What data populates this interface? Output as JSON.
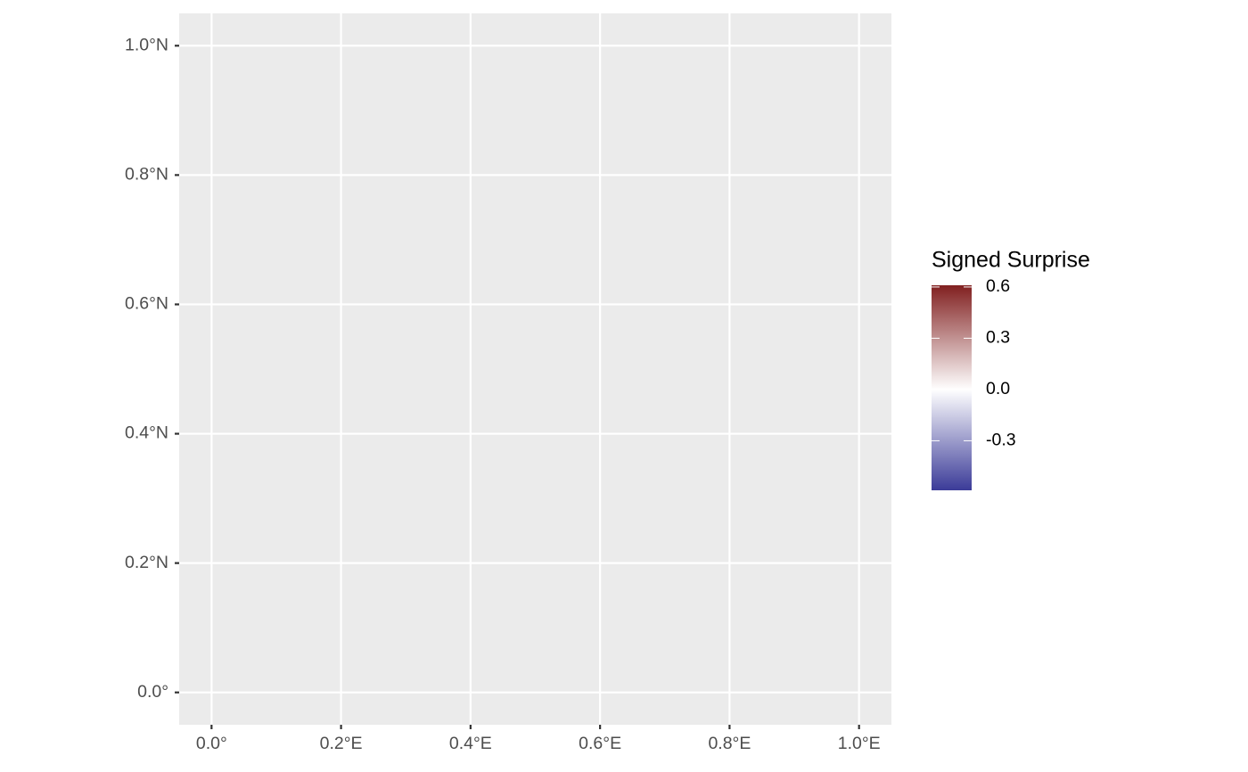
{
  "chart_data": {
    "type": "map",
    "xlim": [
      -0.05,
      1.05
    ],
    "ylim": [
      -0.05,
      1.05
    ],
    "xticks": [
      {
        "value": 0,
        "label": "0.0°"
      },
      {
        "value": 0.2,
        "label": "0.2°E"
      },
      {
        "value": 0.4,
        "label": "0.4°E"
      },
      {
        "value": 0.6,
        "label": "0.6°E"
      },
      {
        "value": 0.8,
        "label": "0.8°E"
      },
      {
        "value": 1,
        "label": "1.0°E"
      }
    ],
    "yticks": [
      {
        "value": 0,
        "label": "0.0°"
      },
      {
        "value": 0.2,
        "label": "0.2°N"
      },
      {
        "value": 0.4,
        "label": "0.4°N"
      },
      {
        "value": 0.6,
        "label": "0.6°N"
      },
      {
        "value": 0.8,
        "label": "0.8°N"
      },
      {
        "value": 1,
        "label": "1.0°N"
      }
    ],
    "grid": true,
    "legend": {
      "title": "Signed Surprise",
      "limits": [
        -0.59,
        0.61
      ],
      "midpoint": 0,
      "low_color": "#3b3b98",
      "mid_color": "#ffffff",
      "high_color": "#812020",
      "ticks": [
        0.6,
        0.3,
        {
          "value": 0,
          "label": "0.0"
        },
        -0.3
      ]
    }
  }
}
